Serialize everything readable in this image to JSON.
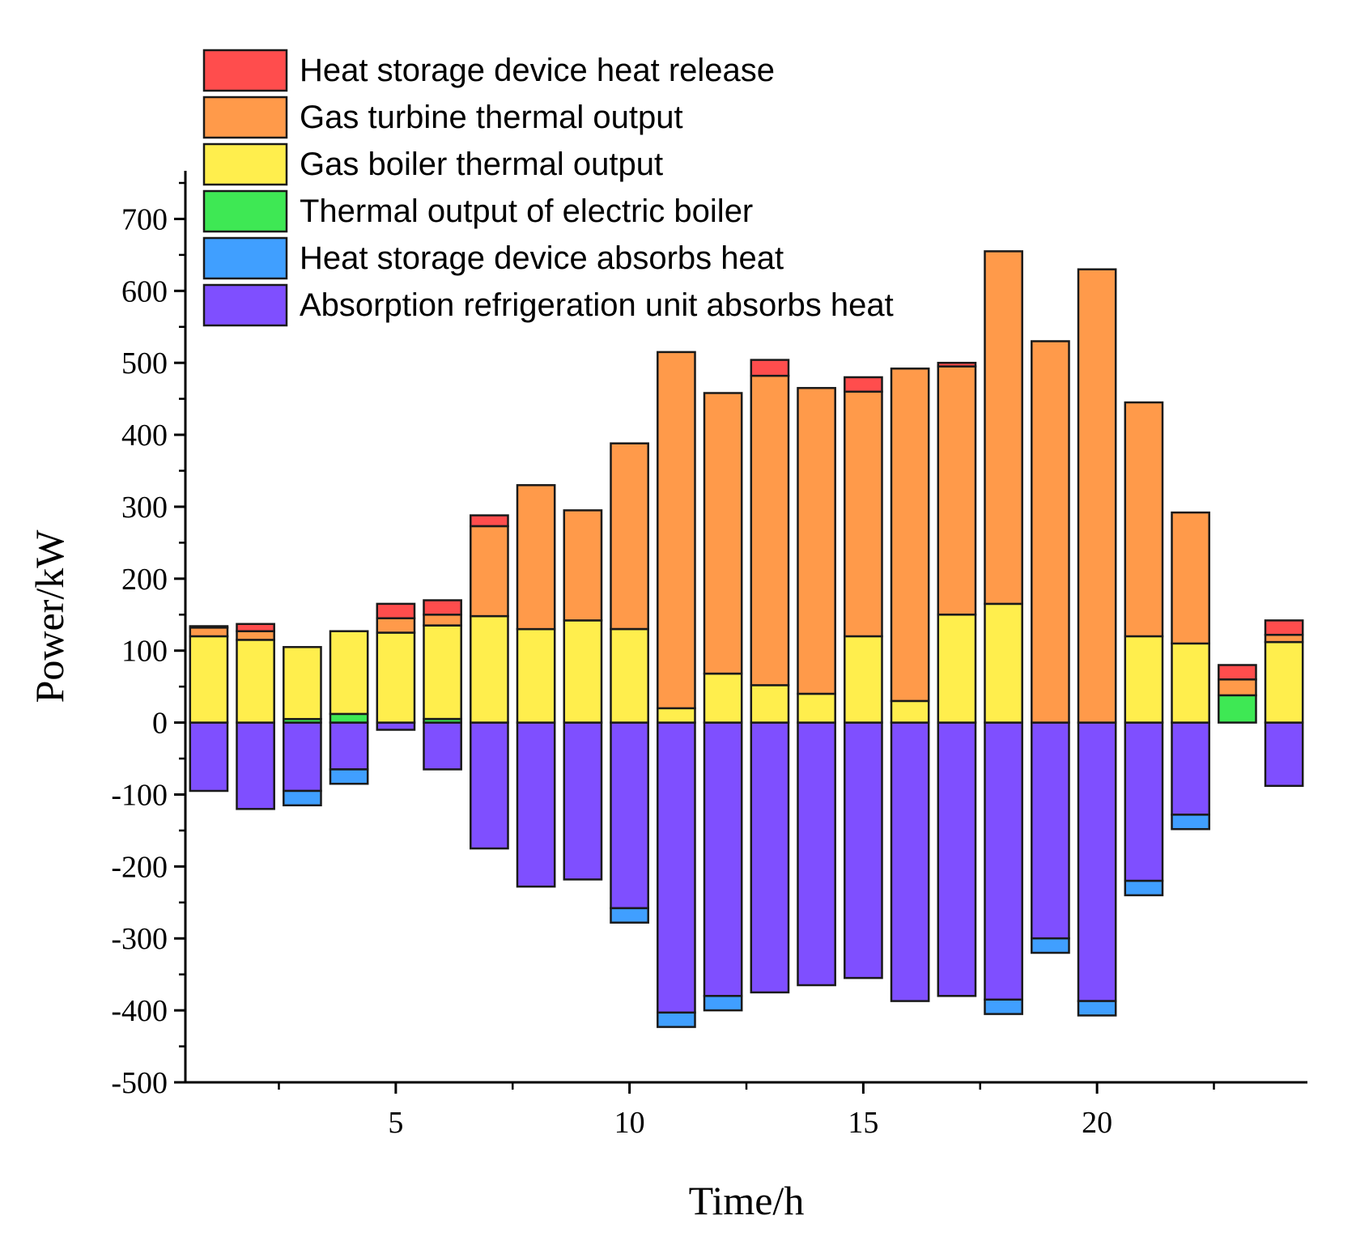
{
  "chart_data": {
    "type": "bar",
    "stacked": true,
    "xlabel": "Time/h",
    "ylabel": "Power/kW",
    "ylim": [
      -500,
      750
    ],
    "yticks": [
      -500,
      -400,
      -300,
      -200,
      -100,
      0,
      100,
      200,
      300,
      400,
      500,
      600,
      700
    ],
    "ytick_labels": [
      "-500",
      "-400",
      "-300",
      "-200",
      "-100",
      "0",
      "100",
      "200",
      "300",
      "400",
      "500",
      "600",
      "700"
    ],
    "xlim": [
      0.5,
      24.5
    ],
    "xticks": [
      5,
      10,
      15,
      20
    ],
    "xtick_labels": [
      "5",
      "10",
      "15",
      "20"
    ],
    "x": [
      1,
      2,
      3,
      4,
      5,
      6,
      7,
      8,
      9,
      10,
      11,
      12,
      13,
      14,
      15,
      16,
      17,
      18,
      19,
      20,
      21,
      22,
      23,
      24
    ],
    "legend_position": "top-left",
    "series": [
      {
        "name": "Absorption refrigeration unit absorbs heat",
        "color": "#7f4fff",
        "values": [
          -95,
          -120,
          -95,
          -65,
          -10,
          -65,
          -175,
          -228,
          -218,
          -258,
          -403,
          -380,
          -375,
          -365,
          -355,
          -387,
          -380,
          -385,
          -300,
          -387,
          -220,
          -128,
          0,
          -88
        ]
      },
      {
        "name": "Heat storage device absorbs heat",
        "color": "#409fff",
        "values": [
          0,
          0,
          -20,
          -20,
          0,
          0,
          0,
          0,
          0,
          -20,
          -20,
          -20,
          0,
          0,
          0,
          0,
          0,
          -20,
          -20,
          -20,
          -20,
          -20,
          0,
          0
        ]
      },
      {
        "name": "Thermal output of electric boiler",
        "color": "#3ee854",
        "values": [
          0,
          0,
          5,
          12,
          0,
          5,
          0,
          0,
          0,
          0,
          0,
          0,
          0,
          0,
          0,
          0,
          0,
          0,
          0,
          0,
          0,
          0,
          38,
          0
        ]
      },
      {
        "name": "Gas boiler thermal output",
        "color": "#ffee4d",
        "values": [
          120,
          115,
          100,
          115,
          125,
          130,
          148,
          130,
          142,
          130,
          20,
          68,
          52,
          40,
          120,
          30,
          150,
          165,
          0,
          0,
          120,
          110,
          0,
          112
        ]
      },
      {
        "name": "Gas turbine thermal output",
        "color": "#ff9a4a",
        "values": [
          12,
          12,
          0,
          0,
          20,
          15,
          125,
          200,
          153,
          258,
          495,
          390,
          430,
          425,
          340,
          462,
          345,
          490,
          530,
          630,
          325,
          182,
          22,
          10
        ]
      },
      {
        "name": "Heat storage device heat release",
        "color": "#ff4d4d",
        "values": [
          2,
          10,
          0,
          0,
          20,
          20,
          15,
          0,
          0,
          0,
          0,
          0,
          22,
          0,
          20,
          0,
          5,
          0,
          0,
          0,
          0,
          0,
          20,
          20
        ]
      }
    ]
  }
}
